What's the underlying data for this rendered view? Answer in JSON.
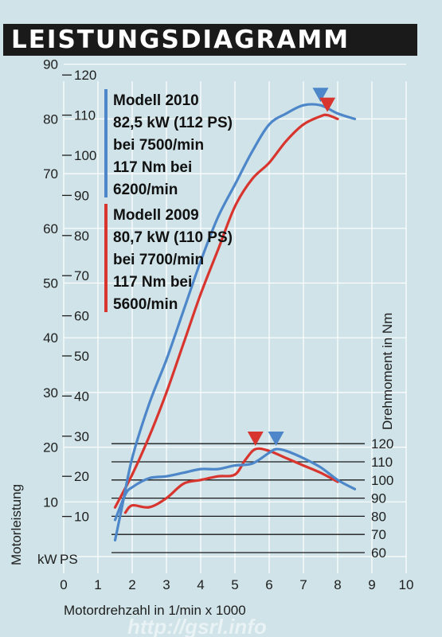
{
  "title": "LEISTUNGSDIAGRAMM",
  "watermark": "http://gsrl.info",
  "colors": {
    "series_2010": "#4d87c9",
    "series_2009": "#d9352f",
    "torque_lines": "#1a1a1a",
    "grid": "#ffffff"
  },
  "chart_data": {
    "type": "line",
    "xlabel": "Motordrehzahl in 1/min x 1000",
    "ylabel_left": "Motorleistung",
    "ylabel_right": "Drehmoment in Nm",
    "unit_kw": "kW",
    "unit_ps": "PS",
    "xlim": [
      0,
      10
    ],
    "x_ticks": [
      "0",
      "1",
      "2",
      "3",
      "4",
      "5",
      "6",
      "7",
      "8",
      "9",
      "10"
    ],
    "ylim_kw": [
      0,
      90
    ],
    "y_ticks_kw": [
      "10",
      "20",
      "30",
      "40",
      "50",
      "60",
      "70",
      "80",
      "90"
    ],
    "y_ticks_ps": [
      "10",
      "20",
      "30",
      "40",
      "50",
      "60",
      "70",
      "80",
      "90",
      "100",
      "110",
      "120"
    ],
    "ylim_torque": [
      60,
      120
    ],
    "y_ticks_torque": [
      "60",
      "70",
      "80",
      "90",
      "100",
      "110",
      "120"
    ],
    "grid": true,
    "legend": [
      {
        "lines": [
          "Modell 2010",
          "82,5 kW (112 PS)",
          "bei 7500/min",
          "117 Nm bei",
          "6200/min"
        ]
      },
      {
        "lines": [
          "Modell 2009",
          "80,7 kW (110 PS)",
          "bei 7700/min",
          "117 Nm bei",
          "5600/min"
        ]
      }
    ],
    "series": [
      {
        "name": "Modell 2010",
        "kind": "power_kw",
        "x": [
          1.5,
          1.7,
          2.0,
          2.5,
          3.0,
          3.5,
          4.0,
          4.5,
          5.0,
          5.5,
          6.0,
          6.5,
          7.0,
          7.5,
          8.0,
          8.5
        ],
        "values": [
          3,
          9,
          18,
          28,
          36,
          45,
          54,
          62,
          68,
          74,
          79,
          81,
          82.5,
          82.5,
          81,
          80
        ]
      },
      {
        "name": "Modell 2010",
        "kind": "torque_nm",
        "x": [
          1.5,
          1.8,
          2.0,
          2.5,
          3.0,
          3.5,
          4.0,
          4.5,
          5.0,
          5.5,
          6.0,
          6.2,
          6.5,
          7.0,
          7.5,
          8.0,
          8.5
        ],
        "values": [
          78,
          92,
          96,
          101,
          102,
          104,
          106,
          106,
          108,
          109,
          115,
          117,
          116,
          112,
          107,
          100,
          95
        ]
      },
      {
        "name": "Modell 2009",
        "kind": "power_kw",
        "x": [
          1.5,
          2.0,
          2.5,
          3.0,
          3.5,
          4.0,
          4.5,
          5.0,
          5.5,
          6.0,
          6.5,
          7.0,
          7.5,
          7.7,
          8.0
        ],
        "values": [
          9,
          15,
          22,
          30,
          39,
          48,
          56,
          64,
          69,
          72,
          76,
          79,
          80.5,
          80.7,
          80
        ]
      },
      {
        "name": "Modell 2009",
        "kind": "torque_nm",
        "x": [
          1.8,
          2.0,
          2.5,
          3.0,
          3.5,
          4.0,
          4.5,
          5.0,
          5.3,
          5.6,
          6.0,
          6.5,
          7.0,
          7.5,
          8.0
        ],
        "values": [
          82,
          86,
          85,
          90,
          98,
          100,
          102,
          103,
          111,
          117,
          116,
          112,
          108,
          104,
          99
        ]
      }
    ],
    "markers": [
      {
        "series": "Modell 2010",
        "x": 7.5,
        "kind": "power_peak"
      },
      {
        "series": "Modell 2009",
        "x": 7.7,
        "kind": "power_peak"
      },
      {
        "series": "Modell 2009",
        "x": 5.6,
        "kind": "torque_peak"
      },
      {
        "series": "Modell 2010",
        "x": 6.2,
        "kind": "torque_peak"
      }
    ]
  }
}
